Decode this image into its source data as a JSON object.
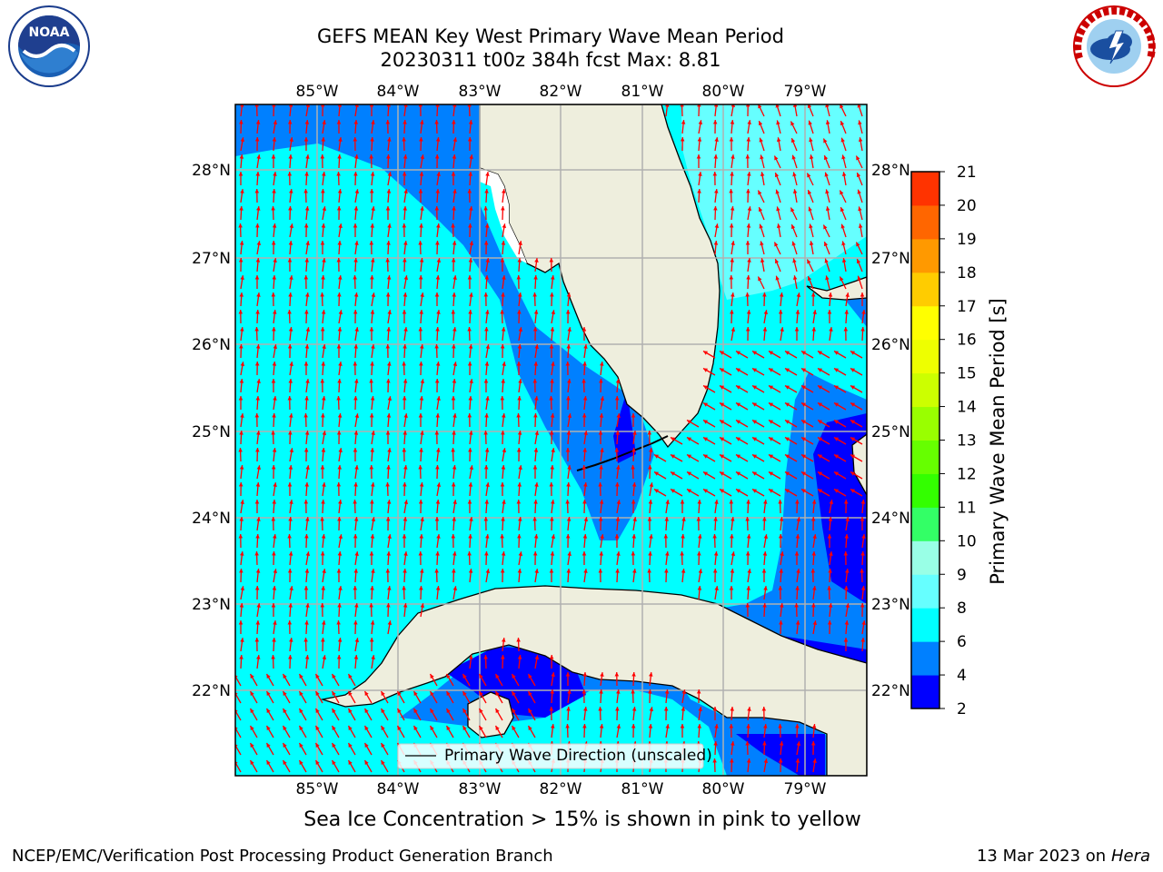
{
  "header": {
    "title_line1": "GEFS MEAN Key West Primary Wave Mean Period",
    "title_line2": "20230311 t00z 384h fcst   Max: 8.81"
  },
  "map": {
    "lon_ticks": [
      "85°W",
      "84°W",
      "83°W",
      "82°W",
      "81°W",
      "80°W",
      "79°W"
    ],
    "lat_ticks": [
      "28°N",
      "27°N",
      "26°N",
      "25°N",
      "24°N",
      "23°N",
      "22°N"
    ],
    "legend_label": "Primary Wave Direction (unscaled)",
    "arrow_color": "#ff0000",
    "land_color": "#eeeedd"
  },
  "colorbar": {
    "title": "Primary Wave Mean Period [s]",
    "levels": [
      "2",
      "4",
      "6",
      "8",
      "9",
      "10",
      "11",
      "12",
      "13",
      "14",
      "15",
      "16",
      "17",
      "18",
      "19",
      "20",
      "21"
    ],
    "colors": [
      "#0000ff",
      "#0080ff",
      "#00ffff",
      "#66ffff",
      "#99ffe6",
      "#33ff66",
      "#33ff00",
      "#66ff00",
      "#99ff00",
      "#ccff00",
      "#eeff00",
      "#ffff00",
      "#ffcc00",
      "#ff9900",
      "#ff6600",
      "#ff3300",
      "#ff0000"
    ]
  },
  "caption": "Sea Ice Concentration > 15% is shown in pink to yellow",
  "footer": {
    "left": "NCEP/EMC/Verification Post Processing Product Generation Branch",
    "date": "13 Mar 2023 on",
    "machine": "Hera"
  },
  "logos": {
    "noaa_text": "NOAA",
    "nws_text": "NATIONAL WEATHER SERVICE"
  }
}
